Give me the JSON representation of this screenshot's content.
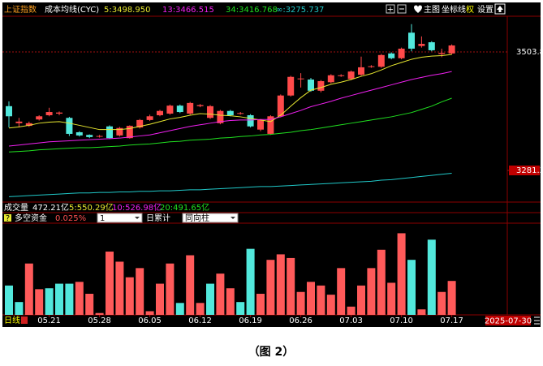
{
  "chart_data": [
    {
      "type": "candlestick",
      "title": "上证指数",
      "indicator": "成本均线(CYC)",
      "open": [
        3402,
        3370,
        3365,
        3377,
        3385,
        3388,
        3380,
        3353,
        3348,
        3345,
        3364,
        3347,
        3342,
        3362,
        3376,
        3385,
        3388,
        3403,
        3388,
        3402,
        3380,
        3370,
        3393,
        3388,
        3385,
        3358,
        3350,
        3383,
        3422,
        3453,
        3452,
        3431,
        3447,
        3459,
        3453,
        3461,
        3476,
        3476,
        3501,
        3492,
        3540,
        3515,
        3522,
        3500,
        3501
      ],
      "close": [
        3383,
        3373,
        3370,
        3383,
        3391,
        3390,
        3350,
        3347,
        3344,
        3346,
        3342,
        3361,
        3365,
        3376,
        3383,
        3393,
        3403,
        3391,
        3408,
        3404,
        3402,
        3393,
        3385,
        3389,
        3364,
        3376,
        3383,
        3422,
        3457,
        3454,
        3431,
        3449,
        3460,
        3460,
        3467,
        3475,
        3477,
        3498,
        3492,
        3510,
        3510,
        3519,
        3507,
        3502,
        3516
      ],
      "high": [
        3411,
        3380,
        3373,
        3385,
        3399,
        3392,
        3382,
        3355,
        3349,
        3348,
        3366,
        3363,
        3366,
        3378,
        3386,
        3395,
        3405,
        3405,
        3410,
        3406,
        3404,
        3395,
        3395,
        3391,
        3387,
        3378,
        3385,
        3424,
        3459,
        3464,
        3455,
        3451,
        3462,
        3462,
        3469,
        3495,
        3479,
        3500,
        3503,
        3512,
        3556,
        3533,
        3524,
        3510,
        3518
      ],
      "low": [
        3362,
        3362,
        3363,
        3375,
        3383,
        3385,
        3346,
        3345,
        3342,
        3343,
        3340,
        3345,
        3341,
        3360,
        3374,
        3383,
        3386,
        3389,
        3386,
        3400,
        3378,
        3368,
        3383,
        3386,
        3362,
        3355,
        3348,
        3381,
        3420,
        3437,
        3429,
        3428,
        3445,
        3457,
        3451,
        3459,
        3474,
        3474,
        3490,
        3490,
        3505,
        3512,
        3505,
        3494,
        3499
      ],
      "up_color": "#ff4a4a",
      "down_color": "#52e8dc",
      "series": [
        {
          "name": "5:3498.950",
          "color": "#e8e830",
          "values": [
            3361,
            3363,
            3366,
            3370,
            3372,
            3373,
            3370,
            3366,
            3362,
            3358,
            3358,
            3358,
            3360,
            3364,
            3368,
            3373,
            3378,
            3381,
            3385,
            3388,
            3387,
            3385,
            3384,
            3382,
            3379,
            3376,
            3373,
            3385,
            3402,
            3418,
            3432,
            3437,
            3443,
            3447,
            3452,
            3458,
            3463,
            3470,
            3478,
            3484,
            3490,
            3494,
            3496,
            3497,
            3499
          ]
        },
        {
          "name": "13:3466.515",
          "color": "#f020f0",
          "values": [
            3327,
            3329,
            3331,
            3333,
            3335,
            3336,
            3337,
            3338,
            3339,
            3340,
            3341,
            3342,
            3344,
            3346,
            3348,
            3352,
            3356,
            3360,
            3364,
            3367,
            3370,
            3373,
            3375,
            3376,
            3376,
            3377,
            3377,
            3382,
            3388,
            3394,
            3401,
            3406,
            3411,
            3417,
            3422,
            3427,
            3432,
            3437,
            3442,
            3447,
            3452,
            3456,
            3460,
            3463,
            3467
          ]
        },
        {
          "name": "34:3416.768",
          "color": "#20e020",
          "values": [
            3316,
            3317,
            3318,
            3320,
            3321,
            3322,
            3323,
            3324,
            3324,
            3325,
            3326,
            3327,
            3329,
            3330,
            3331,
            3333,
            3335,
            3336,
            3338,
            3339,
            3340,
            3342,
            3343,
            3345,
            3346,
            3348,
            3349,
            3351,
            3353,
            3356,
            3358,
            3361,
            3364,
            3367,
            3370,
            3373,
            3376,
            3379,
            3382,
            3386,
            3390,
            3396,
            3402,
            3410,
            3417
          ]
        },
        {
          "name": "∞:3275.737",
          "color": "#20c8c8",
          "values": [
            3232,
            3233,
            3234,
            3235,
            3236,
            3237,
            3238,
            3239,
            3239,
            3240,
            3240,
            3241,
            3241,
            3242,
            3242,
            3243,
            3243,
            3244,
            3245,
            3245,
            3246,
            3247,
            3248,
            3249,
            3250,
            3251,
            3251,
            3252,
            3253,
            3254,
            3255,
            3256,
            3257,
            3258,
            3259,
            3260,
            3261,
            3263,
            3264,
            3266,
            3268,
            3270,
            3272,
            3274,
            3276
          ]
        }
      ],
      "ylim": [
        3223.4,
        3570.9
      ],
      "yticks": [
        3503.8,
        3281.3
      ]
    },
    {
      "type": "bar",
      "title": "多空资金",
      "value_label": "0.025%",
      "categories": [
        null,
        null,
        null,
        null,
        "05.21",
        null,
        null,
        null,
        null,
        "05.28",
        null,
        null,
        null,
        null,
        "06.05",
        null,
        null,
        null,
        null,
        "06.12",
        null,
        null,
        null,
        null,
        "06.19",
        null,
        null,
        null,
        null,
        "06.26",
        null,
        null,
        null,
        null,
        "07.03",
        null,
        null,
        null,
        null,
        "07.10",
        null,
        null,
        null,
        null,
        "07.17"
      ],
      "values": [
        32,
        14,
        56,
        28,
        29,
        34,
        34,
        36,
        23,
        2,
        69,
        58,
        41,
        51,
        4,
        34,
        56,
        13,
        65,
        13,
        34,
        45,
        29,
        14,
        72,
        23,
        60,
        66,
        62,
        25,
        36,
        32,
        22,
        51,
        9,
        32,
        51,
        71,
        35,
        89,
        60,
        6,
        82,
        25,
        37
      ],
      "colors": [
        "#52e8dc",
        "#52e8dc",
        "#ff5a5a",
        "#ff5a5a",
        "#52e8dc",
        "#52e8dc",
        "#52e8dc",
        "#ff5a5a",
        "#ff5a5a",
        "#ff5a5a",
        "#ff5a5a",
        "#ff5a5a",
        "#ff5a5a",
        "#ff5a5a",
        "#ff5a5a",
        "#ff5a5a",
        "#ff5a5a",
        "#52e8dc",
        "#ff5a5a",
        "#ff5a5a",
        "#52e8dc",
        "#ff5a5a",
        "#ff5a5a",
        "#52e8dc",
        "#52e8dc",
        "#ff5a5a",
        "#ff5a5a",
        "#ff5a5a",
        "#ff5a5a",
        "#ff5a5a",
        "#ff5a5a",
        "#ff5a5a",
        "#ff5a5a",
        "#ff5a5a",
        "#ff5a5a",
        "#ff5a5a",
        "#ff5a5a",
        "#ff5a5a",
        "#ff5a5a",
        "#ff5a5a",
        "#52e8dc",
        "#ff5a5a",
        "#52e8dc",
        "#ff5a5a",
        "#ff5a5a"
      ],
      "ylim": [
        0,
        100
      ]
    }
  ],
  "ui": {
    "toolbar": [
      "主图",
      "坐标线",
      "权",
      "设置"
    ],
    "volume": {
      "title": "成交量",
      "total": "472.21亿",
      "ma": [
        "5:550.29亿",
        "10:526.98亿",
        "20:491.65亿"
      ]
    },
    "period_select": "1",
    "accumulate": "日累计",
    "mode_select": "同向柱",
    "period": "日线",
    "cursor_date": "2025-07-30",
    "caption": "（图 2）"
  }
}
